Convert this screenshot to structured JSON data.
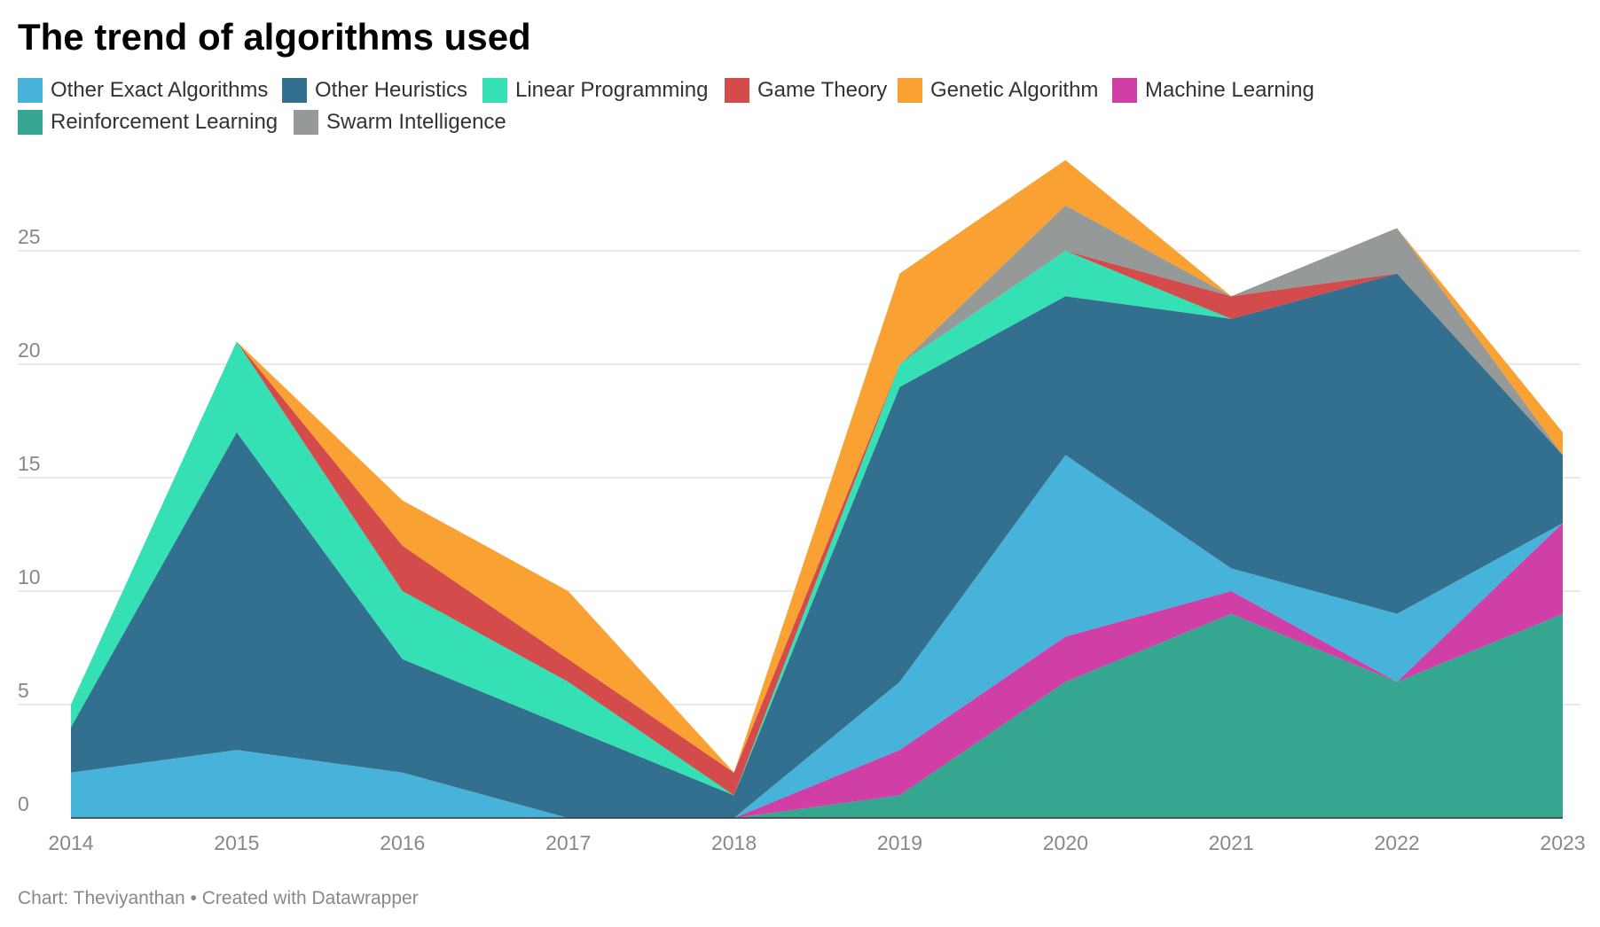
{
  "title": "The trend of algorithms used",
  "footer": "Chart: Theviyanthan • Created with Datawrapper",
  "chart_data": {
    "type": "area",
    "stacked": true,
    "title": "The trend of algorithms used",
    "xlabel": "",
    "ylabel": "",
    "x": [
      "2014",
      "2015",
      "2016",
      "2017",
      "2018",
      "2019",
      "2020",
      "2021",
      "2022",
      "2023"
    ],
    "ylim": [
      0,
      29
    ],
    "yticks": [
      0,
      5,
      10,
      15,
      20,
      25
    ],
    "grid": true,
    "legend": "top",
    "series": [
      {
        "name": "Reinforcement Learning",
        "color": "#35a68f",
        "values": [
          0,
          0,
          0,
          0,
          0,
          1,
          6,
          9,
          6,
          9
        ]
      },
      {
        "name": "Machine Learning",
        "color": "#d03fa6",
        "values": [
          0,
          0,
          0,
          0,
          0,
          2,
          2,
          1,
          0,
          4
        ]
      },
      {
        "name": "Other Exact Algorithms",
        "color": "#48b3da",
        "values": [
          2,
          3,
          2,
          0,
          0,
          3,
          8,
          1,
          3,
          0
        ]
      },
      {
        "name": "Other Heuristics",
        "color": "#33708f",
        "values": [
          2,
          14,
          5,
          4,
          1,
          13,
          7,
          11,
          15,
          3
        ]
      },
      {
        "name": "Linear Programming",
        "color": "#35e0b5",
        "values": [
          1,
          4,
          3,
          2,
          0,
          1,
          2,
          0,
          0,
          0
        ]
      },
      {
        "name": "Game Theory",
        "color": "#d44b4b",
        "values": [
          0,
          0,
          2,
          1,
          1,
          0,
          0,
          1,
          0,
          0
        ]
      },
      {
        "name": "Swarm Intelligence",
        "color": "#959a98",
        "values": [
          0,
          0,
          0,
          0,
          0,
          0,
          2,
          0,
          2,
          0
        ]
      },
      {
        "name": "Genetic Algorithm",
        "color": "#f9a233",
        "values": [
          0,
          0,
          2,
          3,
          0,
          4,
          2,
          0,
          0,
          1
        ]
      }
    ],
    "legend_order": [
      "Other Exact Algorithms",
      "Other Heuristics",
      "Linear Programming",
      "Game Theory",
      "Genetic Algorithm",
      "Machine Learning",
      "Reinforcement Learning",
      "Swarm Intelligence"
    ]
  }
}
